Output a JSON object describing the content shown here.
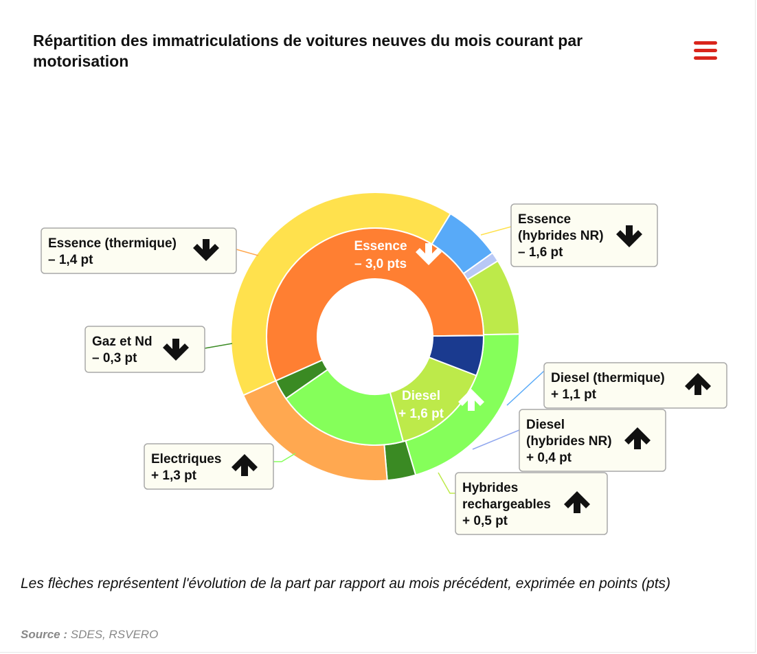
{
  "header": {
    "title": "Répartition des immatriculations de voitures neuves du mois courant par motorisation",
    "menu_icon": "hamburger-menu-icon"
  },
  "footer": {
    "note": "Les flèches représentent l'évolution de la part par rapport au mois précédent, exprimée en points (pts)",
    "source_label": "Source :",
    "source_value": "SDES, RSVERO"
  },
  "chart_data": {
    "type": "pie",
    "variant": "nested-donut",
    "title": "Répartition des immatriculations de voitures neuves du mois courant par motorisation",
    "inner": [
      {
        "label": "Essence",
        "value": 56.5,
        "change": "– 3,0 pts",
        "direction": "down",
        "color": "#ff7f32"
      },
      {
        "label": "Diesel",
        "value": 21.0,
        "change": "+ 1,6 pt",
        "direction": "up",
        "color": "#bdea4a"
      },
      {
        "label": "Electriques",
        "value": 19.5,
        "change": "+ 1,3 pt",
        "direction": "up",
        "color": "#85ff5a"
      },
      {
        "label": "Gaz et Nd",
        "value": 3.0,
        "change": "– 0,3 pt",
        "direction": "down",
        "color": "#3a8a23"
      }
    ],
    "outer": [
      {
        "label": "Essence (hybrides NR)",
        "lines": [
          "Essence",
          "(hybrides NR)",
          "– 1,6 pt"
        ],
        "value": 38.0,
        "direction": "down",
        "color": "#ffe14d"
      },
      {
        "label": "Diesel (thermique)",
        "lines": [
          "Diesel (thermique)",
          "+ 1,1 pt"
        ],
        "value": 6.0,
        "direction": "up",
        "color": "#58aaf8"
      },
      {
        "label": "Diesel (hybrides NR)",
        "lines": [
          "Diesel",
          "(hybrides NR)",
          "+ 0,4 pt"
        ],
        "value": 1.0,
        "direction": "up",
        "color": "#b8c8f6"
      },
      {
        "label": "Hybrides rechargeables",
        "lines": [
          "Hybrides",
          "rechargeables",
          "+ 0,5 pt"
        ],
        "value": 8.0,
        "direction": "up",
        "color": "#bdea4a"
      },
      {
        "label": "Electriques",
        "lines": [
          "Electriques",
          "+ 1,3 pt"
        ],
        "value": 19.5,
        "direction": "up",
        "color": "#85ff5a"
      },
      {
        "label": "Gaz et Nd",
        "lines": [
          "Gaz et Nd",
          "– 0,3 pt"
        ],
        "value": 3.0,
        "direction": "down",
        "color": "#3a8a23"
      },
      {
        "label": "Essence (thermique)",
        "lines": [
          "Essence (thermique)",
          "– 1,4 pt"
        ],
        "value": 18.5,
        "direction": "down",
        "color": "#ffa850"
      }
    ],
    "diesel_thermique_inner": {
      "label": "Diesel (thermique)",
      "value": 6.0,
      "color": "#1a3a8f"
    },
    "legend": "none"
  }
}
